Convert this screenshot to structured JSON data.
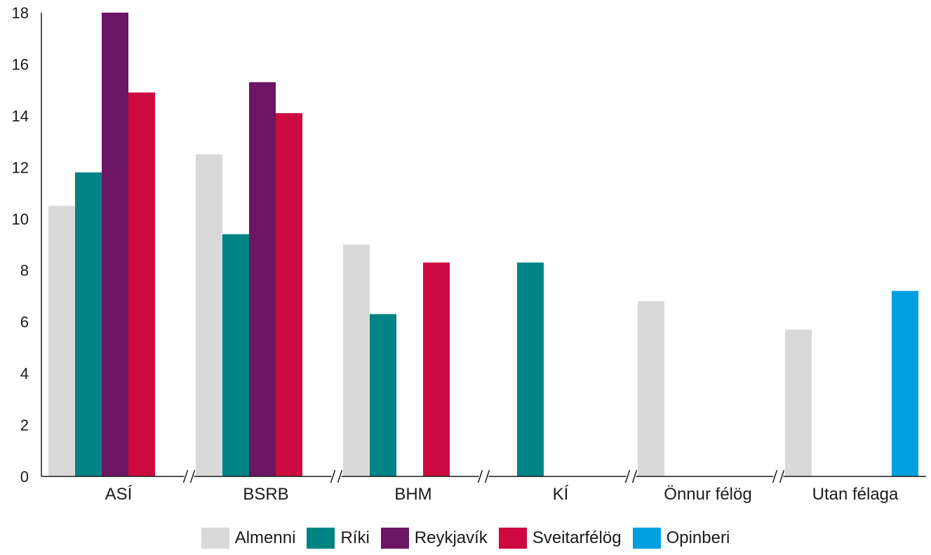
{
  "chart_data": {
    "type": "bar",
    "categories": [
      "ASÍ",
      "BSRB",
      "BHM",
      "KÍ",
      "Önnur félög",
      "Utan félaga"
    ],
    "series": [
      {
        "name": "Almenni",
        "color": "#d9d9d9",
        "values": [
          10.5,
          12.5,
          9.0,
          null,
          6.8,
          5.7
        ]
      },
      {
        "name": "Ríki",
        "color": "#008385",
        "values": [
          11.8,
          9.4,
          6.3,
          8.3,
          null,
          null
        ]
      },
      {
        "name": "Reykjavík",
        "color": "#6c1563",
        "values": [
          18.0,
          15.3,
          null,
          null,
          null,
          null
        ]
      },
      {
        "name": "Sveitarfélög",
        "color": "#cc0a3f",
        "values": [
          14.9,
          14.1,
          8.3,
          null,
          null,
          null
        ]
      },
      {
        "name": "Opinberi",
        "color": "#00a0e0",
        "values": [
          null,
          null,
          null,
          null,
          null,
          7.2
        ]
      }
    ],
    "yticks": [
      "0",
      "2",
      "4",
      "6",
      "8",
      "10",
      "12",
      "14",
      "16",
      "18"
    ],
    "ylim": [
      0,
      18
    ],
    "grid": false,
    "legend_position": "bottom",
    "axis_breaks": true
  }
}
